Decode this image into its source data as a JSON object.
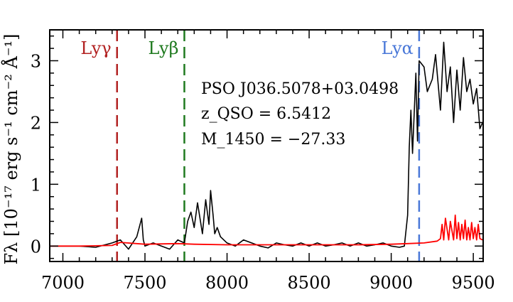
{
  "chart_data": {
    "type": "line",
    "title": "",
    "xlabel": "",
    "ylabel": "Fλ [10⁻¹⁷ erg s⁻¹ cm⁻² Å⁻¹]",
    "xlim": [
      6920,
      9560
    ],
    "ylim": [
      -0.25,
      3.5
    ],
    "xticks": [
      7000,
      7500,
      8000,
      8500,
      9000,
      9500
    ],
    "yticks": [
      0,
      1,
      2,
      3
    ],
    "grid": false,
    "colors": {
      "flux": "#000000",
      "error": "#ff0000",
      "lya": "#4a78d8",
      "lyb": "#1f7a1f",
      "lyg": "#b22222"
    },
    "reference_lines": [
      {
        "label": "Lyγ",
        "x": 7330,
        "color": "#b22222"
      },
      {
        "label": "Lyβ",
        "x": 7740,
        "color": "#1f7a1f"
      },
      {
        "label": "Lyα",
        "x": 9170,
        "color": "#4a78d8"
      }
    ],
    "annotation": {
      "object": "PSO J036.5078+03.0498",
      "redshift": "z_QSO = 6.5412",
      "magnitude": "M_1450 = −27.33"
    },
    "series": [
      {
        "x": [
          6920,
          7100,
          7200,
          7300,
          7350,
          7400,
          7450,
          7480,
          7490,
          7500,
          7550,
          7600,
          7650,
          7700,
          7740,
          7760,
          7780,
          7800,
          7820,
          7850,
          7870,
          7890,
          7900,
          7915,
          7925,
          7940,
          7960,
          8000,
          8050,
          8100,
          8150,
          8200,
          8250,
          8300,
          8350,
          8400,
          8450,
          8500,
          8550,
          8600,
          8650,
          8700,
          8750,
          8800,
          8850,
          8900,
          8950,
          9000,
          9050,
          9080,
          9100,
          9110,
          9120,
          9130,
          9150,
          9160,
          9170,
          9200,
          9220,
          9250,
          9270,
          9300,
          9320,
          9340,
          9360,
          9380,
          9400,
          9420,
          9440,
          9460,
          9480,
          9500,
          9520,
          9540,
          9556
        ],
        "values": [
          0.0,
          0.0,
          -0.02,
          0.05,
          0.1,
          -0.05,
          0.15,
          0.45,
          0.1,
          0.0,
          0.05,
          0.0,
          -0.05,
          0.1,
          0.05,
          0.4,
          0.55,
          0.3,
          0.7,
          0.2,
          0.75,
          0.35,
          0.9,
          0.5,
          0.2,
          0.3,
          0.15,
          0.05,
          0.0,
          0.1,
          0.05,
          0.0,
          -0.03,
          0.05,
          0.02,
          0.0,
          0.05,
          0.0,
          0.05,
          0.0,
          0.02,
          0.05,
          0.0,
          0.05,
          0.0,
          0.02,
          0.05,
          0.0,
          -0.02,
          0.0,
          0.5,
          1.6,
          2.2,
          1.5,
          2.8,
          1.7,
          3.0,
          2.9,
          2.5,
          2.7,
          3.1,
          2.2,
          3.3,
          2.5,
          2.9,
          2.0,
          2.85,
          2.2,
          3.05,
          2.5,
          2.7,
          2.3,
          2.55,
          1.9,
          2.0
        ]
      },
      {
        "x": [
          6920,
          7100,
          7300,
          7350,
          7500,
          7700,
          7800,
          8000,
          8200,
          8400,
          8600,
          8800,
          9000,
          9100,
          9200,
          9280,
          9300,
          9310,
          9320,
          9330,
          9350,
          9360,
          9380,
          9390,
          9400,
          9410,
          9420,
          9430,
          9440,
          9450,
          9460,
          9470,
          9480,
          9490,
          9500,
          9510,
          9520,
          9530,
          9540,
          9556
        ],
        "values": [
          0.0,
          0.0,
          0.01,
          0.06,
          0.03,
          0.04,
          0.03,
          0.02,
          0.02,
          0.02,
          0.02,
          0.02,
          0.03,
          0.04,
          0.05,
          0.08,
          0.12,
          0.35,
          0.1,
          0.45,
          0.1,
          0.4,
          0.1,
          0.5,
          0.12,
          0.38,
          0.1,
          0.35,
          0.12,
          0.42,
          0.1,
          0.3,
          0.1,
          0.38,
          0.12,
          0.3,
          0.1,
          0.35,
          0.12,
          0.1
        ]
      }
    ]
  }
}
